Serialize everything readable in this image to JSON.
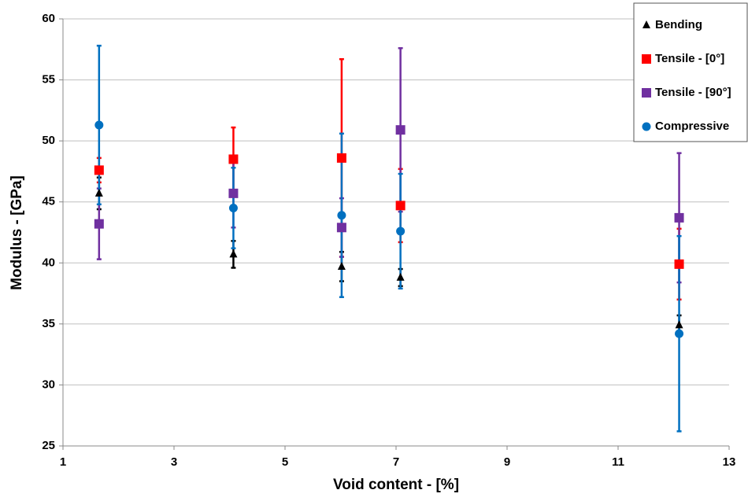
{
  "chart_data": {
    "type": "scatter",
    "x_label": "Void content - [%]",
    "y_label": "Modulus - [GPa]",
    "xlim": [
      1,
      13
    ],
    "xticks": [
      1,
      3,
      5,
      7,
      9,
      11,
      13
    ],
    "ylim": [
      25,
      60
    ],
    "yticks": [
      25,
      30,
      35,
      40,
      45,
      50,
      55,
      60
    ],
    "grid": true,
    "series": [
      {
        "name": "Bending",
        "color": "#000000",
        "marker": "triangle",
        "x": [
          1.65,
          4.07,
          6.02,
          7.08,
          12.1
        ],
        "values": [
          45.7,
          40.7,
          39.7,
          38.8,
          34.9
        ],
        "errors": [
          1.3,
          1.1,
          1.2,
          0.7,
          0.8
        ]
      },
      {
        "name": "Tensile - [0°]",
        "color": "#ff0000",
        "marker": "square",
        "x": [
          1.65,
          4.07,
          6.02,
          7.08,
          12.1
        ],
        "values": [
          47.6,
          48.5,
          48.6,
          44.7,
          39.9
        ],
        "errors": [
          1.0,
          2.6,
          8.1,
          3.0,
          2.9
        ]
      },
      {
        "name": "Tensile - [90°]",
        "color": "#7030a0",
        "marker": "square",
        "x": [
          1.65,
          4.07,
          6.02,
          7.08,
          12.1
        ],
        "values": [
          43.2,
          45.7,
          42.9,
          50.9,
          43.7
        ],
        "errors": [
          2.9,
          2.8,
          2.4,
          6.7,
          5.3
        ]
      },
      {
        "name": "Compressive",
        "color": "#0070c0",
        "marker": "circle",
        "x": [
          1.65,
          4.07,
          6.02,
          7.08,
          12.1
        ],
        "values": [
          51.3,
          44.5,
          43.9,
          42.6,
          34.2
        ],
        "errors": [
          6.5,
          3.3,
          6.7,
          4.7,
          8.0
        ]
      }
    ]
  }
}
